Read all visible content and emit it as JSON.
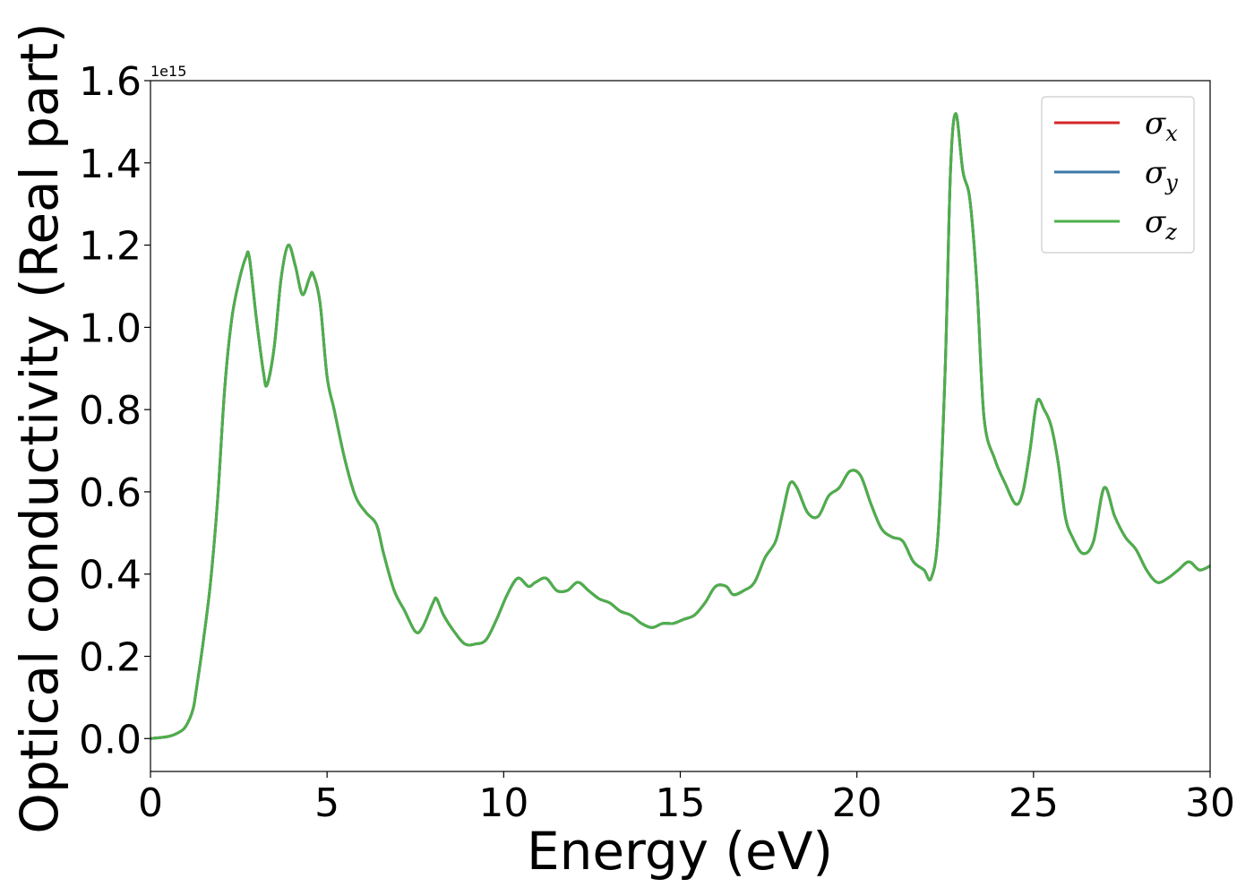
{
  "chart_data": {
    "type": "line",
    "xlabel": "Energy (eV)",
    "ylabel": "Optical conductivity (Real part)",
    "y_offset_text": "1e15",
    "xlim": [
      0,
      30
    ],
    "ylim": [
      -0.08,
      1.6
    ],
    "xticks": [
      0,
      5,
      10,
      15,
      20,
      25,
      30
    ],
    "xtick_labels": [
      "0",
      "5",
      "10",
      "15",
      "20",
      "25",
      "30"
    ],
    "yticks": [
      0.0,
      0.2,
      0.4,
      0.6,
      0.8,
      1.0,
      1.2,
      1.4,
      1.6
    ],
    "ytick_labels": [
      "0.0",
      "0.2",
      "0.4",
      "0.6",
      "0.8",
      "1.0",
      "1.2",
      "1.4",
      "1.6"
    ],
    "grid": false,
    "legend_position": "top-right",
    "series": [
      {
        "name": "σx",
        "name_base": "σ",
        "name_sub": "x",
        "color": "#d62728",
        "x": [
          0,
          0.5,
          0.8,
          1.0,
          1.2,
          1.3,
          1.5,
          1.7,
          1.9,
          2.1,
          2.3,
          2.5,
          2.7,
          2.8,
          3.0,
          3.2,
          3.3,
          3.5,
          3.7,
          3.9,
          4.1,
          4.3,
          4.5,
          4.6,
          4.8,
          5.0,
          5.2,
          5.5,
          5.8,
          6.1,
          6.4,
          6.6,
          6.9,
          7.2,
          7.5,
          7.7,
          8.0,
          8.1,
          8.3,
          8.6,
          8.9,
          9.2,
          9.5,
          9.8,
          10.1,
          10.4,
          10.7,
          10.9,
          11.2,
          11.5,
          11.8,
          12.1,
          12.4,
          12.7,
          13.0,
          13.3,
          13.6,
          13.9,
          14.2,
          14.5,
          14.8,
          15.1,
          15.4,
          15.7,
          16.0,
          16.3,
          16.5,
          16.8,
          17.1,
          17.4,
          17.7,
          17.9,
          18.1,
          18.3,
          18.6,
          18.9,
          19.2,
          19.5,
          19.8,
          20.1,
          20.4,
          20.7,
          21.0,
          21.3,
          21.6,
          21.9,
          22.1,
          22.3,
          22.5,
          22.65,
          22.8,
          23.0,
          23.2,
          23.4,
          23.6,
          23.9,
          24.2,
          24.5,
          24.7,
          24.9,
          25.1,
          25.3,
          25.5,
          25.7,
          25.9,
          26.1,
          26.4,
          26.7,
          27.0,
          27.3,
          27.6,
          27.9,
          28.2,
          28.5,
          28.8,
          29.1,
          29.4,
          29.7,
          30.0
        ],
        "y": [
          0.0,
          0.005,
          0.015,
          0.03,
          0.07,
          0.12,
          0.24,
          0.38,
          0.58,
          0.85,
          1.02,
          1.11,
          1.17,
          1.17,
          1.02,
          0.89,
          0.86,
          0.95,
          1.12,
          1.2,
          1.15,
          1.08,
          1.12,
          1.13,
          1.06,
          0.88,
          0.8,
          0.68,
          0.59,
          0.55,
          0.52,
          0.45,
          0.36,
          0.31,
          0.26,
          0.27,
          0.33,
          0.34,
          0.3,
          0.26,
          0.23,
          0.23,
          0.24,
          0.29,
          0.35,
          0.39,
          0.37,
          0.38,
          0.39,
          0.36,
          0.36,
          0.38,
          0.36,
          0.34,
          0.33,
          0.31,
          0.3,
          0.28,
          0.27,
          0.28,
          0.28,
          0.29,
          0.3,
          0.33,
          0.37,
          0.37,
          0.35,
          0.36,
          0.38,
          0.44,
          0.48,
          0.55,
          0.62,
          0.61,
          0.55,
          0.54,
          0.59,
          0.61,
          0.65,
          0.64,
          0.57,
          0.51,
          0.49,
          0.48,
          0.43,
          0.41,
          0.39,
          0.5,
          0.9,
          1.38,
          1.52,
          1.38,
          1.31,
          1.1,
          0.78,
          0.68,
          0.62,
          0.57,
          0.6,
          0.7,
          0.82,
          0.8,
          0.76,
          0.67,
          0.54,
          0.49,
          0.45,
          0.48,
          0.61,
          0.54,
          0.49,
          0.46,
          0.41,
          0.38,
          0.39,
          0.41,
          0.43,
          0.41,
          0.42
        ]
      },
      {
        "name": "σy",
        "name_base": "σ",
        "name_sub": "y",
        "color": "#3a78a8",
        "x": [
          0,
          0.5,
          0.8,
          1.0,
          1.2,
          1.3,
          1.5,
          1.7,
          1.9,
          2.1,
          2.3,
          2.5,
          2.7,
          2.8,
          3.0,
          3.2,
          3.3,
          3.5,
          3.7,
          3.9,
          4.1,
          4.3,
          4.5,
          4.6,
          4.8,
          5.0,
          5.2,
          5.5,
          5.8,
          6.1,
          6.4,
          6.6,
          6.9,
          7.2,
          7.5,
          7.7,
          8.0,
          8.1,
          8.3,
          8.6,
          8.9,
          9.2,
          9.5,
          9.8,
          10.1,
          10.4,
          10.7,
          10.9,
          11.2,
          11.5,
          11.8,
          12.1,
          12.4,
          12.7,
          13.0,
          13.3,
          13.6,
          13.9,
          14.2,
          14.5,
          14.8,
          15.1,
          15.4,
          15.7,
          16.0,
          16.3,
          16.5,
          16.8,
          17.1,
          17.4,
          17.7,
          17.9,
          18.1,
          18.3,
          18.6,
          18.9,
          19.2,
          19.5,
          19.8,
          20.1,
          20.4,
          20.7,
          21.0,
          21.3,
          21.6,
          21.9,
          22.1,
          22.3,
          22.5,
          22.65,
          22.8,
          23.0,
          23.2,
          23.4,
          23.6,
          23.9,
          24.2,
          24.5,
          24.7,
          24.9,
          25.1,
          25.3,
          25.5,
          25.7,
          25.9,
          26.1,
          26.4,
          26.7,
          27.0,
          27.3,
          27.6,
          27.9,
          28.2,
          28.5,
          28.8,
          29.1,
          29.4,
          29.7,
          30.0
        ],
        "y": [
          0.0,
          0.005,
          0.015,
          0.03,
          0.07,
          0.12,
          0.24,
          0.38,
          0.58,
          0.85,
          1.02,
          1.11,
          1.17,
          1.17,
          1.02,
          0.89,
          0.86,
          0.95,
          1.12,
          1.2,
          1.15,
          1.08,
          1.12,
          1.13,
          1.06,
          0.88,
          0.8,
          0.68,
          0.59,
          0.55,
          0.52,
          0.45,
          0.36,
          0.31,
          0.26,
          0.27,
          0.33,
          0.34,
          0.3,
          0.26,
          0.23,
          0.23,
          0.24,
          0.29,
          0.35,
          0.39,
          0.37,
          0.38,
          0.39,
          0.36,
          0.36,
          0.38,
          0.36,
          0.34,
          0.33,
          0.31,
          0.3,
          0.28,
          0.27,
          0.28,
          0.28,
          0.29,
          0.3,
          0.33,
          0.37,
          0.37,
          0.35,
          0.36,
          0.38,
          0.44,
          0.48,
          0.55,
          0.62,
          0.61,
          0.55,
          0.54,
          0.59,
          0.61,
          0.65,
          0.64,
          0.57,
          0.51,
          0.49,
          0.48,
          0.43,
          0.41,
          0.39,
          0.5,
          0.9,
          1.38,
          1.52,
          1.38,
          1.31,
          1.1,
          0.78,
          0.68,
          0.62,
          0.57,
          0.6,
          0.7,
          0.82,
          0.8,
          0.76,
          0.67,
          0.54,
          0.49,
          0.45,
          0.48,
          0.61,
          0.54,
          0.49,
          0.46,
          0.41,
          0.38,
          0.39,
          0.41,
          0.43,
          0.41,
          0.42
        ]
      },
      {
        "name": "σz",
        "name_base": "σ",
        "name_sub": "z",
        "color": "#4daf4a",
        "x": [
          0,
          0.5,
          0.8,
          1.0,
          1.2,
          1.3,
          1.5,
          1.7,
          1.9,
          2.1,
          2.3,
          2.5,
          2.7,
          2.8,
          3.0,
          3.2,
          3.3,
          3.5,
          3.7,
          3.9,
          4.1,
          4.3,
          4.5,
          4.6,
          4.8,
          5.0,
          5.2,
          5.5,
          5.8,
          6.1,
          6.4,
          6.6,
          6.9,
          7.2,
          7.5,
          7.7,
          8.0,
          8.1,
          8.3,
          8.6,
          8.9,
          9.2,
          9.5,
          9.8,
          10.1,
          10.4,
          10.7,
          10.9,
          11.2,
          11.5,
          11.8,
          12.1,
          12.4,
          12.7,
          13.0,
          13.3,
          13.6,
          13.9,
          14.2,
          14.5,
          14.8,
          15.1,
          15.4,
          15.7,
          16.0,
          16.3,
          16.5,
          16.8,
          17.1,
          17.4,
          17.7,
          17.9,
          18.1,
          18.3,
          18.6,
          18.9,
          19.2,
          19.5,
          19.8,
          20.1,
          20.4,
          20.7,
          21.0,
          21.3,
          21.6,
          21.9,
          22.1,
          22.3,
          22.5,
          22.65,
          22.8,
          23.0,
          23.2,
          23.4,
          23.6,
          23.9,
          24.2,
          24.5,
          24.7,
          24.9,
          25.1,
          25.3,
          25.5,
          25.7,
          25.9,
          26.1,
          26.4,
          26.7,
          27.0,
          27.3,
          27.6,
          27.9,
          28.2,
          28.5,
          28.8,
          29.1,
          29.4,
          29.7,
          30.0
        ],
        "y": [
          0.0,
          0.005,
          0.015,
          0.03,
          0.07,
          0.12,
          0.24,
          0.38,
          0.58,
          0.85,
          1.02,
          1.11,
          1.17,
          1.17,
          1.02,
          0.89,
          0.86,
          0.95,
          1.12,
          1.2,
          1.15,
          1.08,
          1.12,
          1.13,
          1.06,
          0.88,
          0.8,
          0.68,
          0.59,
          0.55,
          0.52,
          0.45,
          0.36,
          0.31,
          0.26,
          0.27,
          0.33,
          0.34,
          0.3,
          0.26,
          0.23,
          0.23,
          0.24,
          0.29,
          0.35,
          0.39,
          0.37,
          0.38,
          0.39,
          0.36,
          0.36,
          0.38,
          0.36,
          0.34,
          0.33,
          0.31,
          0.3,
          0.28,
          0.27,
          0.28,
          0.28,
          0.29,
          0.3,
          0.33,
          0.37,
          0.37,
          0.35,
          0.36,
          0.38,
          0.44,
          0.48,
          0.55,
          0.62,
          0.61,
          0.55,
          0.54,
          0.59,
          0.61,
          0.65,
          0.64,
          0.57,
          0.51,
          0.49,
          0.48,
          0.43,
          0.41,
          0.39,
          0.5,
          0.9,
          1.38,
          1.52,
          1.38,
          1.31,
          1.1,
          0.78,
          0.68,
          0.62,
          0.57,
          0.6,
          0.7,
          0.82,
          0.8,
          0.76,
          0.67,
          0.54,
          0.49,
          0.45,
          0.48,
          0.61,
          0.54,
          0.49,
          0.46,
          0.41,
          0.38,
          0.39,
          0.41,
          0.43,
          0.41,
          0.42
        ]
      }
    ]
  }
}
